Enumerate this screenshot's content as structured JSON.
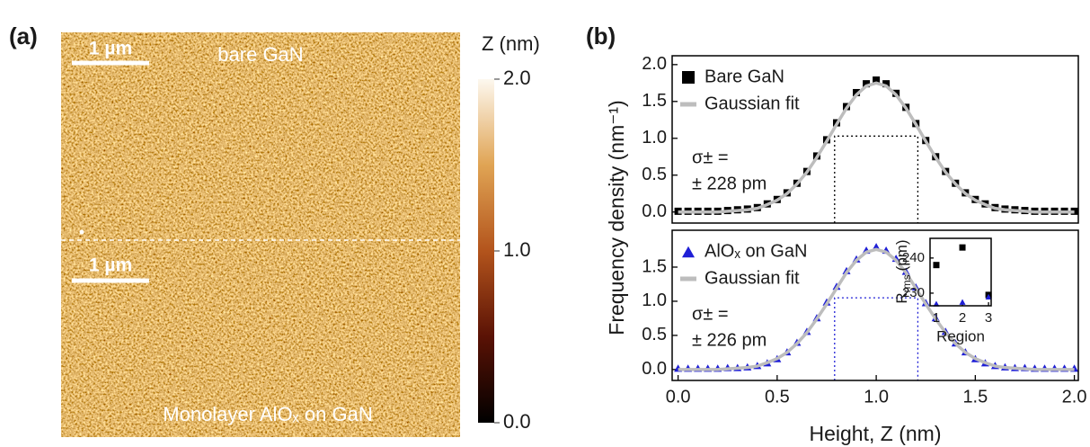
{
  "panel_labels": [
    "(a)",
    "(b)"
  ],
  "afm_image": {
    "scale_bars": [
      "1 µm",
      "1 µm"
    ],
    "top_label": "bare GaN",
    "bottom_label": "Monolayer AlOₓ on GaN"
  },
  "colorbar": {
    "title": "Z (nm)",
    "lim": [
      0,
      2
    ],
    "ticks": [
      {
        "value": 2,
        "label": "2.0"
      },
      {
        "value": 1,
        "label": "1.0"
      },
      {
        "value": 0,
        "label": "0.0"
      }
    ]
  },
  "chart_data": [
    {
      "type": "line",
      "ylabel": "Frequency density (nm⁻¹)",
      "xlim": [
        -0.03,
        2.02
      ],
      "ylim": [
        -0.15,
        2.12
      ],
      "yticks": [
        {
          "value": 0,
          "label": "0.0"
        },
        {
          "value": 0.5,
          "label": "0.5"
        },
        {
          "value": 1,
          "label": "1.0"
        },
        {
          "value": 1.5,
          "label": "1.5"
        },
        {
          "value": 2,
          "label": "2.0"
        }
      ],
      "x": [
        0,
        0.05,
        0.1,
        0.15,
        0.2,
        0.25,
        0.3,
        0.35,
        0.4,
        0.45,
        0.5,
        0.55,
        0.6,
        0.65,
        0.7,
        0.75,
        0.8,
        0.85,
        0.9,
        0.95,
        1,
        1.05,
        1.1,
        1.15,
        1.2,
        1.25,
        1.3,
        1.35,
        1.4,
        1.45,
        1.5,
        1.55,
        1.6,
        1.65,
        1.7,
        1.75,
        1.8,
        1.85,
        1.9,
        1.95,
        2
      ],
      "series": [
        {
          "name": "Bare GaN",
          "color": "#000000",
          "marker": "square",
          "values": [
            0.01,
            0.01,
            0.01,
            0.01,
            0.01,
            0.02,
            0.03,
            0.04,
            0.06,
            0.11,
            0.17,
            0.26,
            0.39,
            0.55,
            0.76,
            0.98,
            1.21,
            1.43,
            1.62,
            1.74,
            1.79,
            1.74,
            1.61,
            1.42,
            1.2,
            0.97,
            0.75,
            0.55,
            0.39,
            0.26,
            0.17,
            0.11,
            0.06,
            0.04,
            0.03,
            0.02,
            0.01,
            0.01,
            0.01,
            0.01,
            0.01
          ]
        },
        {
          "name": "Gaussian fit",
          "color": "#bdbdbd",
          "values": [
            0,
            0,
            0,
            0,
            0,
            0.01,
            0.02,
            0.03,
            0.05,
            0.1,
            0.16,
            0.25,
            0.38,
            0.54,
            0.74,
            0.96,
            1.19,
            1.41,
            1.59,
            1.71,
            1.75,
            1.71,
            1.59,
            1.41,
            1.19,
            0.96,
            0.74,
            0.54,
            0.38,
            0.25,
            0.16,
            0.1,
            0.05,
            0.03,
            0.02,
            0.01,
            0,
            0,
            0,
            0,
            0
          ]
        }
      ],
      "fwhm_x": [
        0.79,
        1.21
      ],
      "fwhm_y": 1.03,
      "fwhm_color": "#000000",
      "sigma_label": "σ± =",
      "sigma_value": "± 228 pm"
    },
    {
      "type": "line",
      "xlabel": "Height, Z (nm)",
      "xlim": [
        -0.03,
        2.02
      ],
      "ylim": [
        -0.16,
        2.04
      ],
      "xticks": [
        {
          "value": 0,
          "label": "0.0"
        },
        {
          "value": 0.5,
          "label": "0.5"
        },
        {
          "value": 1,
          "label": "1.0"
        },
        {
          "value": 1.5,
          "label": "1.5"
        },
        {
          "value": 2,
          "label": "2.0"
        }
      ],
      "yticks": [
        {
          "value": 0,
          "label": "0.0"
        },
        {
          "value": 0.5,
          "label": "0.5"
        },
        {
          "value": 1,
          "label": "1.0"
        },
        {
          "value": 1.5,
          "label": "1.5"
        }
      ],
      "x": [
        0,
        0.05,
        0.1,
        0.15,
        0.2,
        0.25,
        0.3,
        0.35,
        0.4,
        0.45,
        0.5,
        0.55,
        0.6,
        0.65,
        0.7,
        0.75,
        0.8,
        0.85,
        0.9,
        0.95,
        1,
        1.05,
        1.1,
        1.15,
        1.2,
        1.25,
        1.3,
        1.35,
        1.4,
        1.45,
        1.5,
        1.55,
        1.6,
        1.65,
        1.7,
        1.75,
        1.8,
        1.85,
        1.9,
        1.95,
        2
      ],
      "series": [
        {
          "name": "AlOₓ on GaN",
          "color": "#1f1fd6",
          "marker": "triangle",
          "values": [
            0.02,
            0.02,
            0.02,
            0.02,
            0.02,
            0.03,
            0.03,
            0.04,
            0.06,
            0.1,
            0.16,
            0.26,
            0.4,
            0.56,
            0.76,
            0.99,
            1.22,
            1.45,
            1.62,
            1.75,
            1.8,
            1.75,
            1.63,
            1.44,
            1.21,
            0.98,
            0.76,
            0.56,
            0.39,
            0.26,
            0.16,
            0.1,
            0.06,
            0.04,
            0.03,
            0.03,
            0.02,
            0.02,
            0.02,
            0.02,
            0.02
          ]
        },
        {
          "name": "Gaussian fit",
          "color": "#bdbdbd",
          "values": [
            0,
            0,
            0,
            0,
            0,
            0.01,
            0.02,
            0.03,
            0.05,
            0.1,
            0.16,
            0.25,
            0.38,
            0.54,
            0.74,
            0.96,
            1.19,
            1.42,
            1.6,
            1.72,
            1.76,
            1.72,
            1.6,
            1.42,
            1.19,
            0.96,
            0.74,
            0.54,
            0.38,
            0.25,
            0.16,
            0.1,
            0.05,
            0.03,
            0.02,
            0.01,
            0,
            0,
            0,
            0,
            0
          ]
        }
      ],
      "fwhm_x": [
        0.79,
        1.21
      ],
      "fwhm_y": 1.05,
      "fwhm_color": "#1f1fd6",
      "sigma_label": "σ± =",
      "sigma_value": "± 226 pm"
    },
    {
      "type": "scatter",
      "xlabel": "Region",
      "ylabel": "R",
      "ylabel_sub": "rms",
      "ylabel_unit": "(pm)",
      "xlim": [
        0.76,
        3.1
      ],
      "ylim": [
        226.4,
        245.6
      ],
      "xticks": [
        1,
        2,
        3
      ],
      "yticks": [
        230,
        240
      ],
      "x": [
        1,
        2,
        3
      ],
      "series": [
        {
          "color": "#000000",
          "marker": "square",
          "values": [
            238,
            243,
            229.5
          ]
        },
        {
          "color": "#1f1fd6",
          "marker": "triangle",
          "values": [
            227,
            227.5,
            229
          ]
        }
      ]
    }
  ]
}
